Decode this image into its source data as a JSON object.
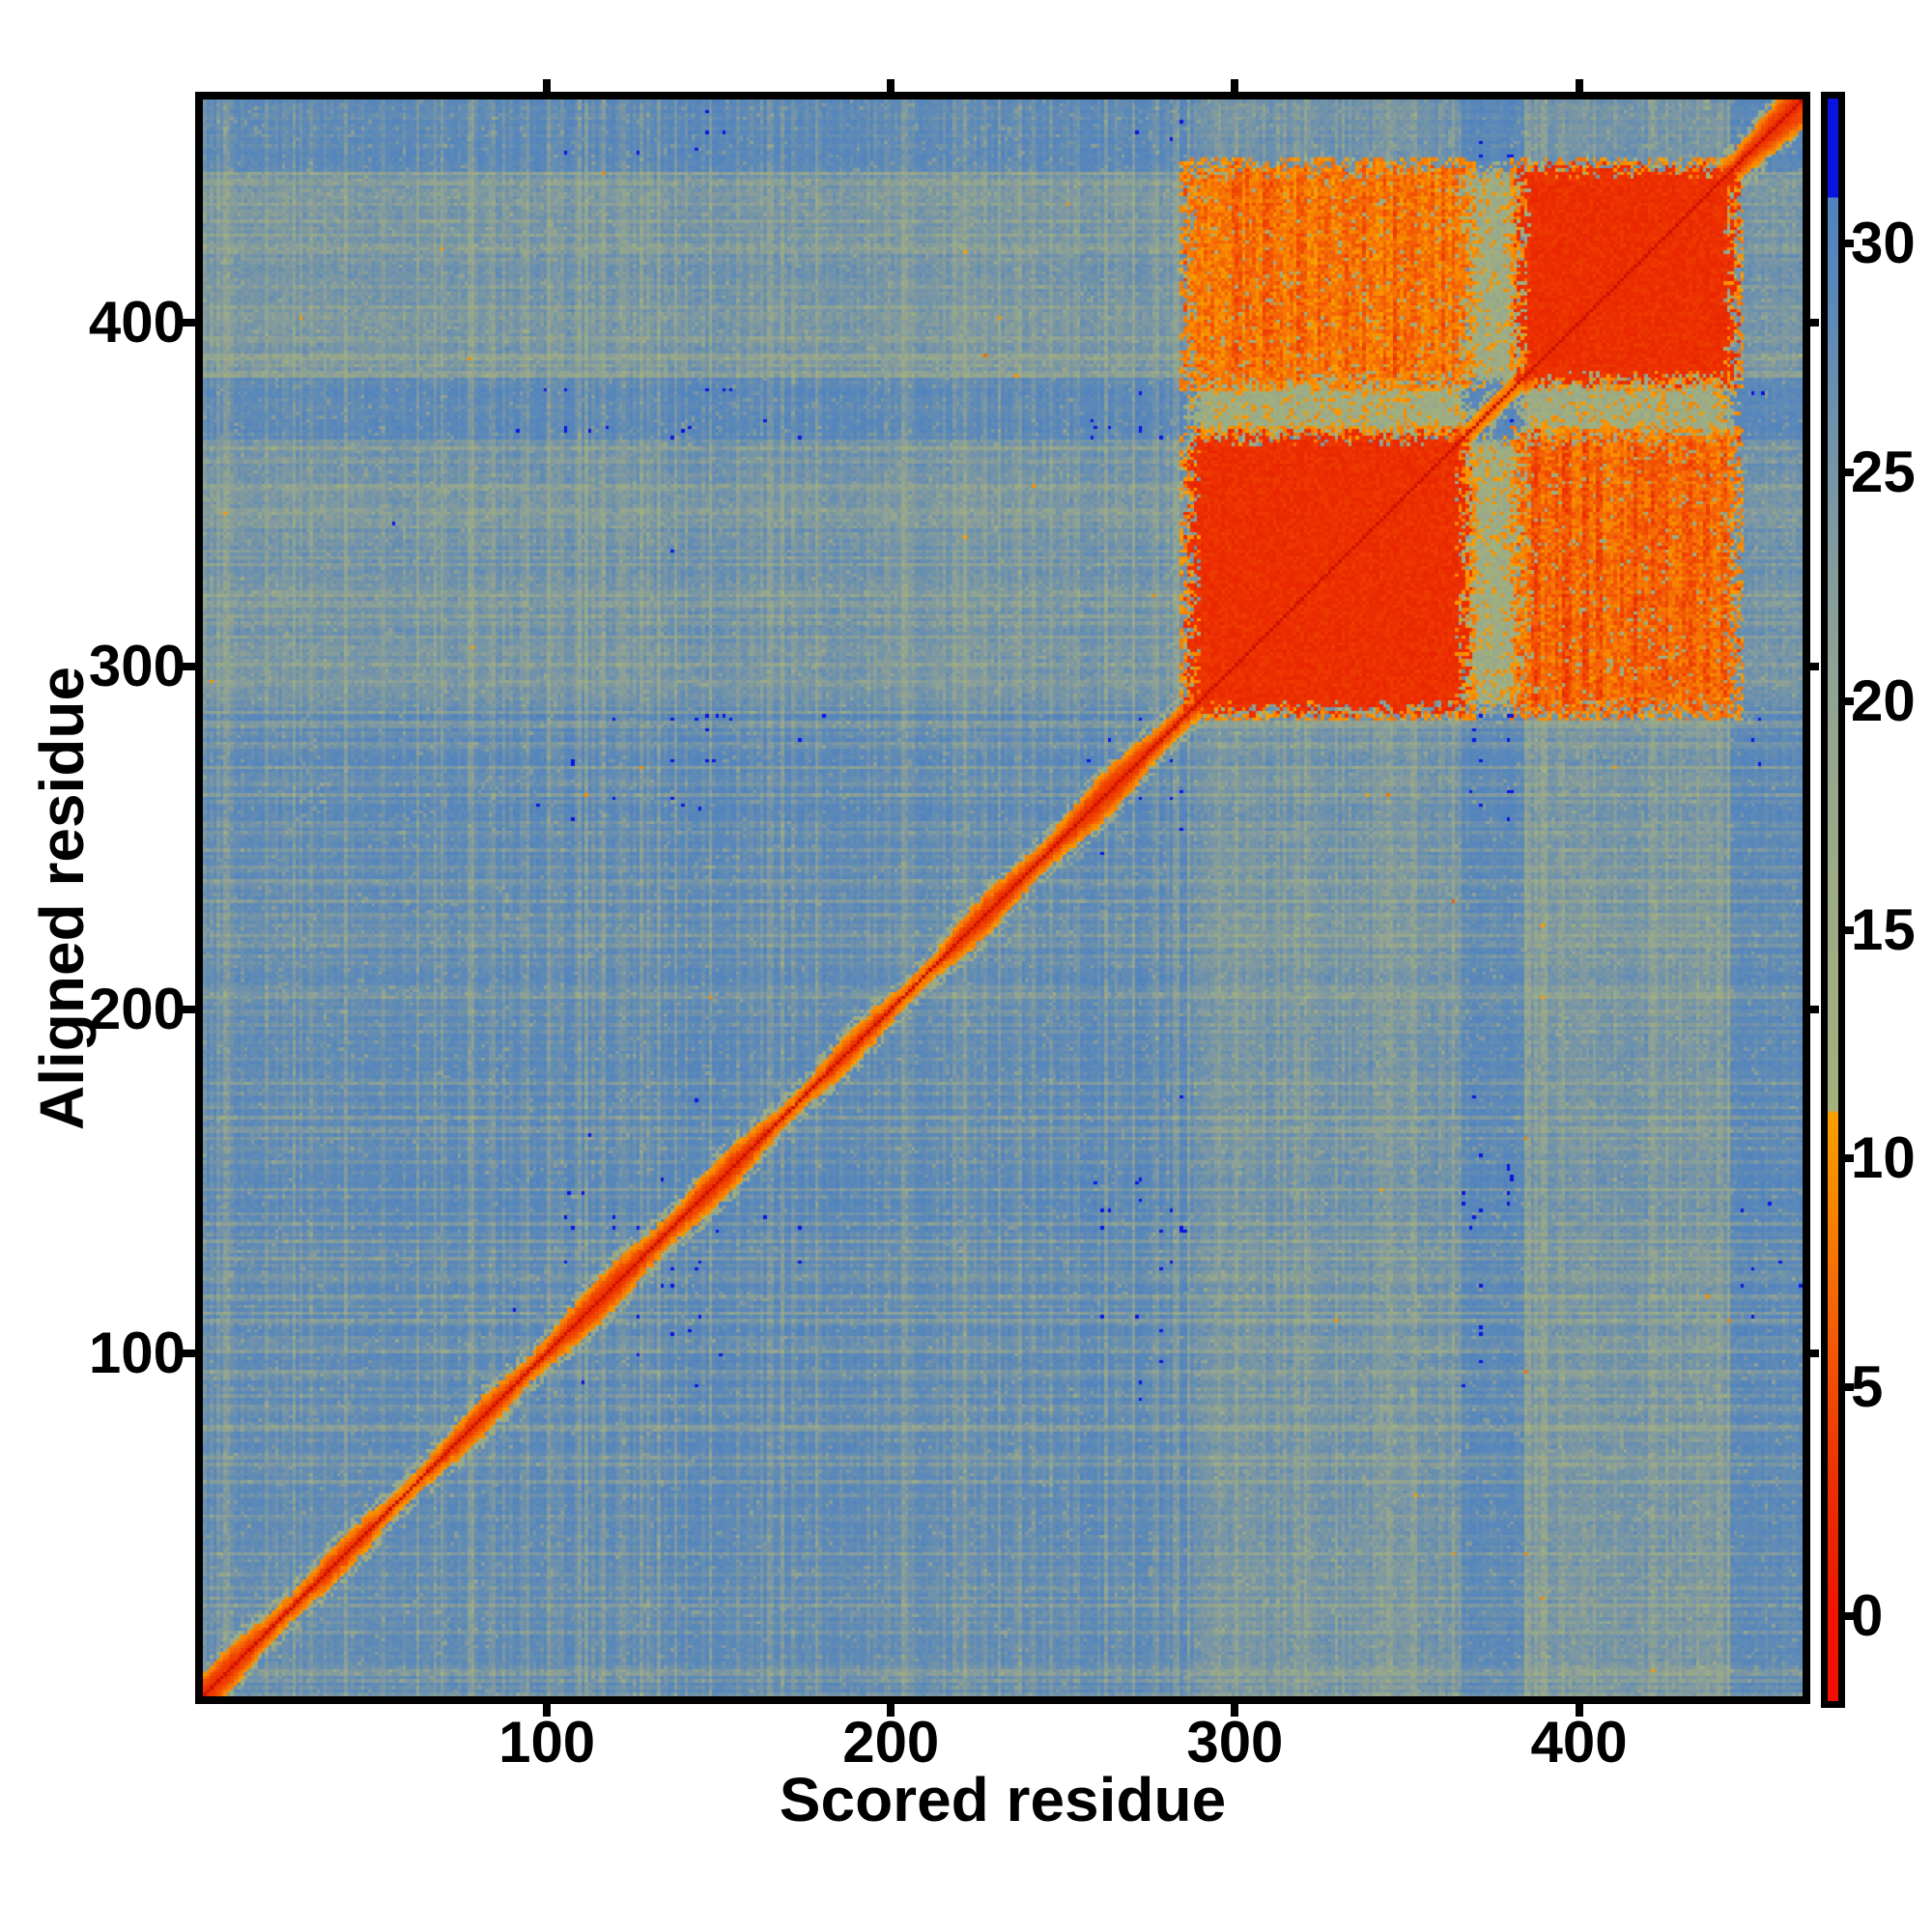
{
  "chart_data": {
    "type": "heatmap",
    "title": "",
    "xlabel": "Scored residue",
    "ylabel": "Aligned residue",
    "x_ticks": [
      100,
      200,
      300,
      400
    ],
    "y_ticks": [
      100,
      200,
      300,
      400
    ],
    "xlim": [
      0,
      465
    ],
    "ylim": [
      0,
      465
    ],
    "n_residues": 465,
    "grid": false,
    "legend_position": "none",
    "colorbar": {
      "ticks": [
        0,
        5,
        10,
        15,
        20,
        25,
        30
      ],
      "vmin": -1.86,
      "vmax": 33.17,
      "cap_threshold": 31,
      "cap_color": "#0a14e0",
      "stops": [
        [
          31,
          "#4f82bf"
        ],
        [
          28.5,
          "#5c89b8"
        ],
        [
          26,
          "#6f92ab"
        ],
        [
          23,
          "#849b9d"
        ],
        [
          20,
          "#92a492"
        ],
        [
          16,
          "#9cab86"
        ],
        [
          12.5,
          "#a1af7e"
        ],
        [
          11.05,
          "#a4b17a"
        ],
        [
          11.0,
          "#f9a000"
        ],
        [
          9,
          "#f78500"
        ],
        [
          7,
          "#f56707"
        ],
        [
          5,
          "#f14c02"
        ],
        [
          3,
          "#ed3001"
        ],
        [
          1.5,
          "#e92400"
        ],
        [
          0.2,
          "#f01500"
        ],
        [
          -1.86,
          "#f30e00"
        ]
      ]
    },
    "structure": {
      "background_value": 30.2,
      "noise": {
        "streak_power": 2.6,
        "streak_scale": 9,
        "cell_jitter": 2.4,
        "green_band_boost": 6.5
      },
      "domains": [
        {
          "name": "domain-1",
          "range": [
            0,
            288
          ],
          "band": "plain"
        },
        {
          "name": "domain-2",
          "range": [
            288,
            366
          ],
          "band": "green"
        },
        {
          "name": "linker",
          "range": [
            366,
            384
          ],
          "band": "blue"
        },
        {
          "name": "domain-3",
          "range": [
            384,
            444
          ],
          "band": "green"
        },
        {
          "name": "c-terminal-tail",
          "range": [
            444,
            465
          ],
          "band": "gray-blue"
        }
      ],
      "blocks": [
        {
          "x": [
            288,
            366
          ],
          "y": [
            366,
            384
          ],
          "value": 15.0,
          "jitter": 3.5,
          "kind": "linker-cross"
        },
        {
          "x": [
            366,
            384
          ],
          "y": [
            288,
            366
          ],
          "value": 15.0,
          "jitter": 3.5,
          "kind": "linker-cross"
        },
        {
          "x": [
            384,
            444
          ],
          "y": [
            366,
            384
          ],
          "value": 15.5,
          "jitter": 3.5,
          "kind": "linker-cross"
        },
        {
          "x": [
            366,
            384
          ],
          "y": [
            384,
            444
          ],
          "value": 15.5,
          "jitter": 3.5,
          "kind": "linker-cross"
        },
        {
          "x": [
            288,
            366
          ],
          "y": [
            384,
            444
          ],
          "value": 8.8,
          "jitter": 2.4,
          "kind": "inter-domain"
        },
        {
          "x": [
            384,
            444
          ],
          "y": [
            288,
            366
          ],
          "value": 7.9,
          "jitter": 2.4,
          "kind": "inter-domain"
        },
        {
          "x": [
            288,
            366
          ],
          "y": [
            288,
            366
          ],
          "value": 2.8,
          "jitter": 1.1,
          "kind": "intra-domain"
        },
        {
          "x": [
            384,
            444
          ],
          "y": [
            384,
            444
          ],
          "value": 2.8,
          "jitter": 1.1,
          "kind": "intra-domain"
        }
      ],
      "diagonal": {
        "core_value": -1.5,
        "core_color": "#cc1200",
        "band_value": 2.0,
        "fringe_value": 7.2,
        "base_width": 2.3,
        "linker_width": 0.6,
        "tail_widening": 0.2
      },
      "blue_specks": [
        [
          55,
          341
        ],
        [
          136,
          333
        ]
      ]
    }
  }
}
